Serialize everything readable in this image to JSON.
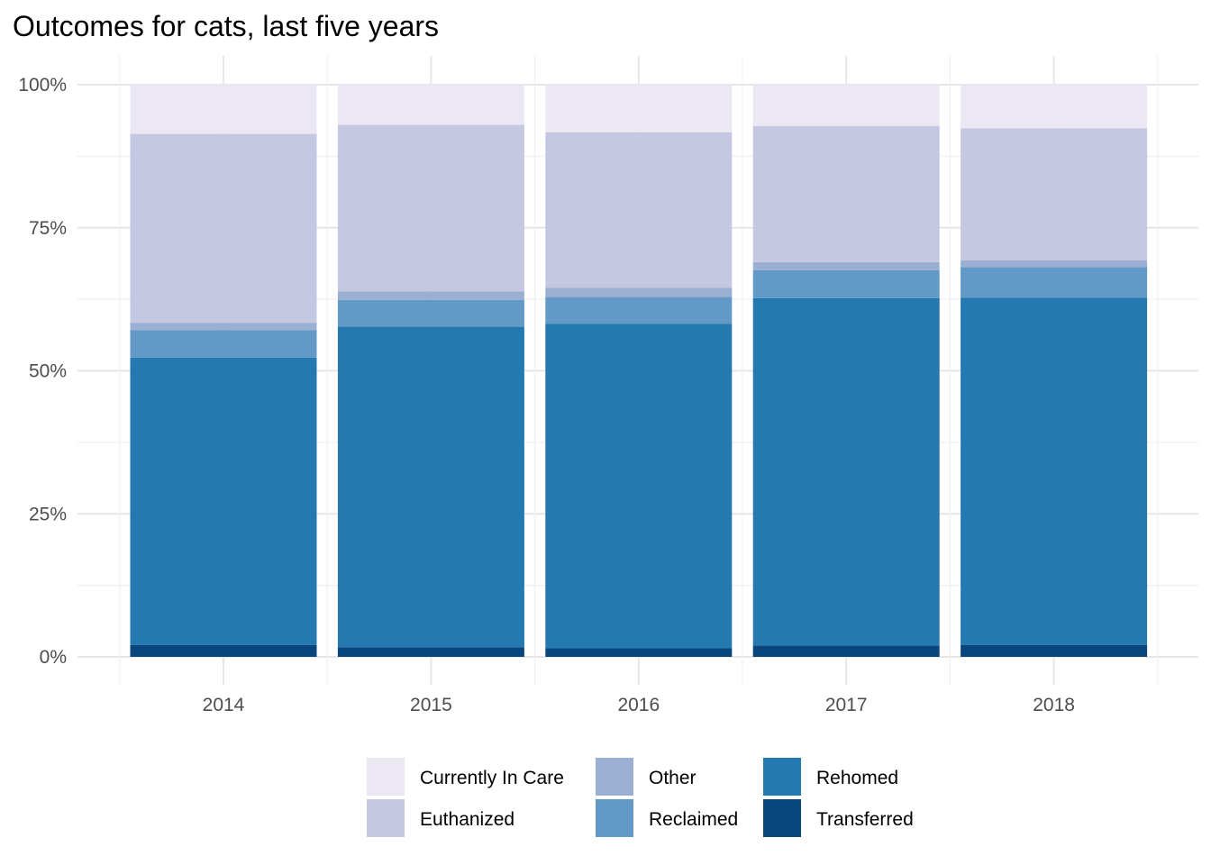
{
  "chart_data": {
    "type": "bar",
    "stacked": true,
    "title": "Outcomes for cats, last five years",
    "xlabel": "",
    "ylabel": "",
    "categories": [
      "2014",
      "2015",
      "2016",
      "2017",
      "2018"
    ],
    "ylim": [
      0,
      1
    ],
    "yticks": [
      {
        "value": 0,
        "label": "0%"
      },
      {
        "value": 0.25,
        "label": "25%"
      },
      {
        "value": 0.5,
        "label": "50%"
      },
      {
        "value": 0.75,
        "label": "75%"
      },
      {
        "value": 1,
        "label": "100%"
      }
    ],
    "grid": true,
    "legend_position": "bottom",
    "series": [
      {
        "name": "Transferred",
        "color": "#08467c",
        "values": [
          0.021,
          0.017,
          0.015,
          0.02,
          0.021
        ]
      },
      {
        "name": "Rehomed",
        "color": "#2479b0",
        "values": [
          0.502,
          0.56,
          0.567,
          0.607,
          0.607
        ]
      },
      {
        "name": "Reclaimed",
        "color": "#6399c6",
        "values": [
          0.048,
          0.047,
          0.047,
          0.049,
          0.053
        ]
      },
      {
        "name": "Other",
        "color": "#9bafd3",
        "values": [
          0.013,
          0.015,
          0.016,
          0.014,
          0.012
        ]
      },
      {
        "name": "Euthanized",
        "color": "#c6c7e1",
        "values": [
          0.33,
          0.291,
          0.272,
          0.238,
          0.231
        ]
      },
      {
        "name": "Currently In Care",
        "color": "#ebe8f4",
        "values": [
          0.086,
          0.07,
          0.083,
          0.072,
          0.076
        ]
      }
    ],
    "legend_order": [
      "Currently In Care",
      "Euthanized",
      "Other",
      "Reclaimed",
      "Rehomed",
      "Transferred"
    ]
  }
}
